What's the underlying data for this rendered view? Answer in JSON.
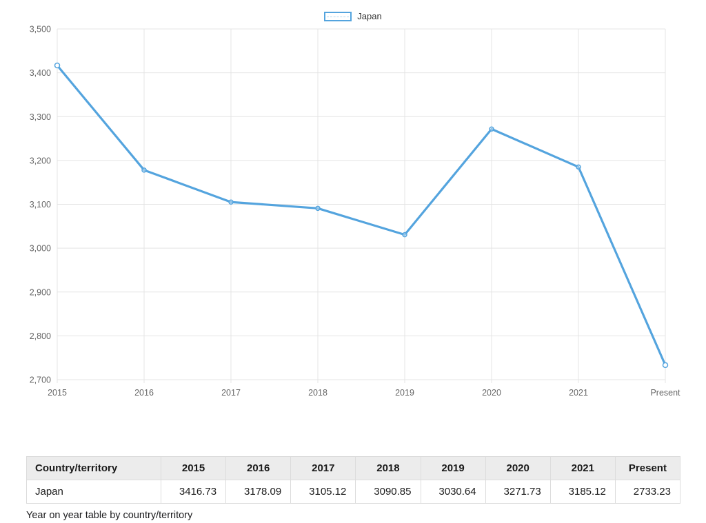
{
  "legend": {
    "label": "Japan",
    "color": "#54a4de"
  },
  "chart_data": {
    "type": "line",
    "title": "",
    "xlabel": "",
    "ylabel": "",
    "categories": [
      "2015",
      "2016",
      "2017",
      "2018",
      "2019",
      "2020",
      "2021",
      "Present"
    ],
    "series": [
      {
        "name": "Japan",
        "color": "#54a4de",
        "values": [
          3416.73,
          3178.09,
          3105.12,
          3090.85,
          3030.64,
          3271.73,
          3185.12,
          2733.23
        ]
      }
    ],
    "ylim": [
      2700,
      3500
    ],
    "y_tick_step": 100,
    "y_tick_labels": [
      "2,700",
      "2,800",
      "2,900",
      "3,000",
      "3,100",
      "3,200",
      "3,300",
      "3,400",
      "3,500"
    ],
    "grid": true,
    "legend_position": "top-center"
  },
  "table": {
    "headers": [
      "Country/territory",
      "2015",
      "2016",
      "2017",
      "2018",
      "2019",
      "2020",
      "2021",
      "Present"
    ],
    "rows": [
      [
        "Japan",
        "3416.73",
        "3178.09",
        "3105.12",
        "3090.85",
        "3030.64",
        "3271.73",
        "3185.12",
        "2733.23"
      ]
    ],
    "caption": "Year on year table by country/territory"
  },
  "colors": {
    "line": "#54a4de",
    "grid": "#e4e4e4",
    "axis_text": "#666666",
    "table_border": "#dcdcdc",
    "table_header_bg": "#ececec",
    "text": "#1a1a1a"
  }
}
